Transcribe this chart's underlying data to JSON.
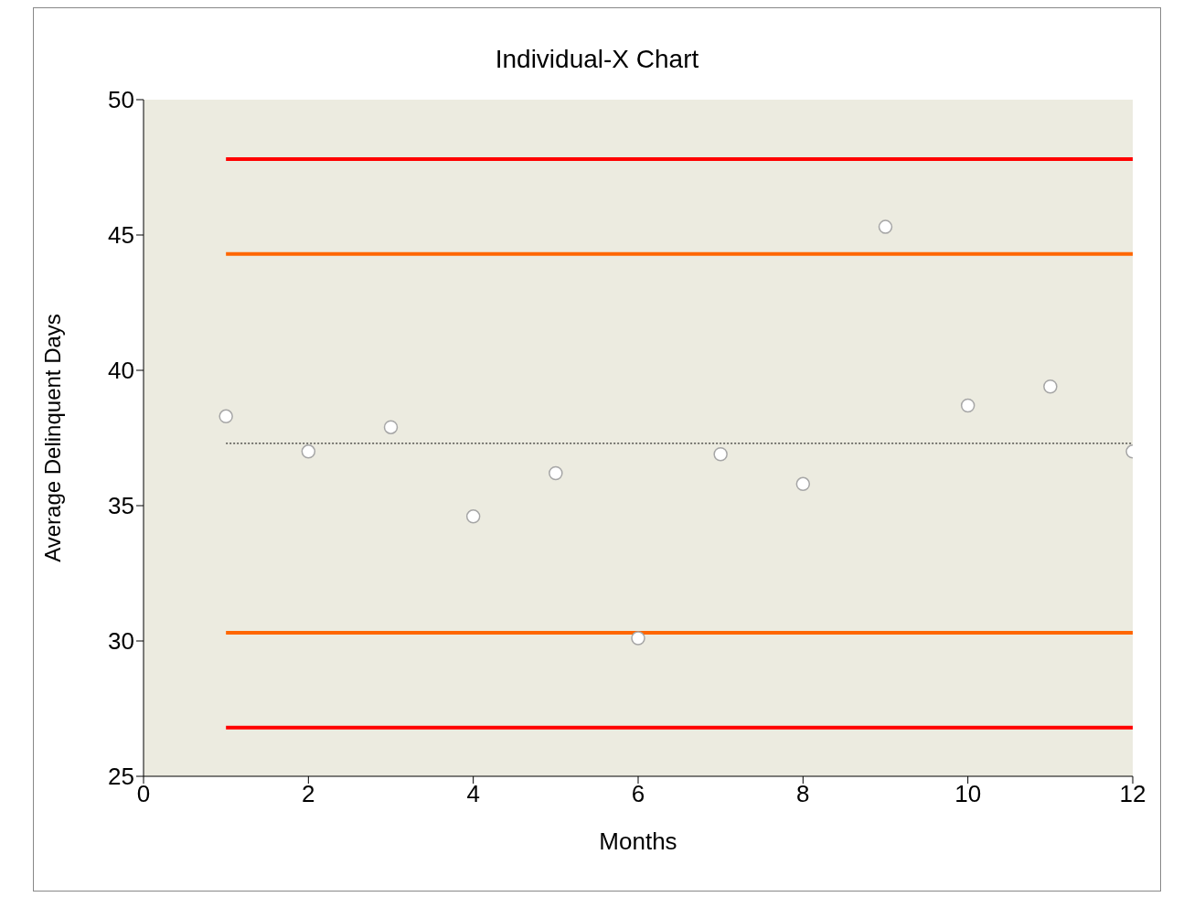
{
  "chart_data": {
    "type": "scatter",
    "title": "Individual-X Chart",
    "xlabel": "Months",
    "ylabel": "Average Delinquent Days",
    "x": [
      1,
      2,
      3,
      4,
      5,
      6,
      7,
      8,
      9,
      10,
      11,
      12
    ],
    "series": [
      {
        "type": "line",
        "color": "#ff0000",
        "values": [
          47.8,
          47.8,
          47.8,
          47.8,
          47.8,
          47.8,
          47.8,
          47.8,
          47.8,
          47.8,
          47.8,
          47.8
        ],
        "marker": "none"
      },
      {
        "type": "line",
        "color": "#ff6600",
        "values": [
          44.3,
          44.3,
          44.3,
          44.3,
          44.3,
          44.3,
          44.3,
          44.3,
          44.3,
          44.3,
          44.3,
          44.3
        ],
        "marker": "none"
      },
      {
        "type": "line",
        "color": "#000000",
        "values": [
          37.3,
          37.3,
          37.3,
          37.3,
          37.3,
          37.3,
          37.3,
          37.3,
          37.3,
          37.3,
          37.3,
          37.3
        ],
        "line_style": "dotted",
        "marker": "none"
      },
      {
        "type": "line",
        "color": "#ff6600",
        "values": [
          30.3,
          30.3,
          30.3,
          30.3,
          30.3,
          30.3,
          30.3,
          30.3,
          30.3,
          30.3,
          30.3,
          30.3
        ],
        "marker": "none"
      },
      {
        "type": "line",
        "color": "#ff0000",
        "values": [
          26.8,
          26.8,
          26.8,
          26.8,
          26.8,
          26.8,
          26.8,
          26.8,
          26.8,
          26.8,
          26.8,
          26.8
        ],
        "marker": "none"
      },
      {
        "color": "#ffffff",
        "values": [
          38.3,
          37.0,
          37.9,
          34.6,
          36.2,
          30.1,
          36.9,
          35.8,
          45.3,
          38.7,
          39.4,
          37.0
        ],
        "marker": "circle"
      }
    ],
    "xlim": [
      0,
      12
    ],
    "xticks": [
      0,
      2,
      4,
      6,
      8,
      10,
      12
    ],
    "ylim": [
      25,
      50
    ],
    "yticks": [
      25,
      30,
      35,
      40,
      45,
      50
    ],
    "grid": false
  }
}
